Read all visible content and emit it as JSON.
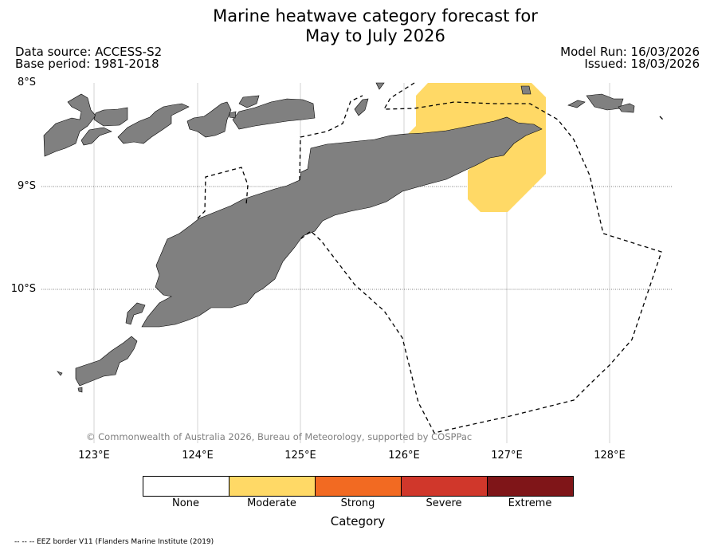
{
  "title_line1": "Marine heatwave category forecast for",
  "title_line2": "May to July 2026",
  "data_source": "Data source: ACCESS-S2",
  "base_period": "Base period: 1981-2018",
  "model_run": "Model Run: 16/03/2026",
  "issued": "Issued: 18/03/2026",
  "map": {
    "lat_labels": [
      "8°S",
      "9°S",
      "10°S"
    ],
    "lon_labels": [
      "123°E",
      "124°E",
      "125°E",
      "126°E",
      "127°E",
      "128°E"
    ],
    "land_color": "#808080",
    "moderate_region_category": "Moderate",
    "eez_style": "dashed"
  },
  "copyright": "© Commonwealth of Australia 2026, Bureau of Meteorology, supported by COSPPac",
  "legend": {
    "title": "Category",
    "items": [
      {
        "label": "None",
        "color": "#ffffff"
      },
      {
        "label": "Moderate",
        "color": "#ffd966"
      },
      {
        "label": "Strong",
        "color": "#f26a22"
      },
      {
        "label": "Severe",
        "color": "#d0372b"
      },
      {
        "label": "Extreme",
        "color": "#7f1518"
      }
    ]
  },
  "footnote": "-- -- -- EEZ border V11 (Flanders Marine Institute (2019)"
}
